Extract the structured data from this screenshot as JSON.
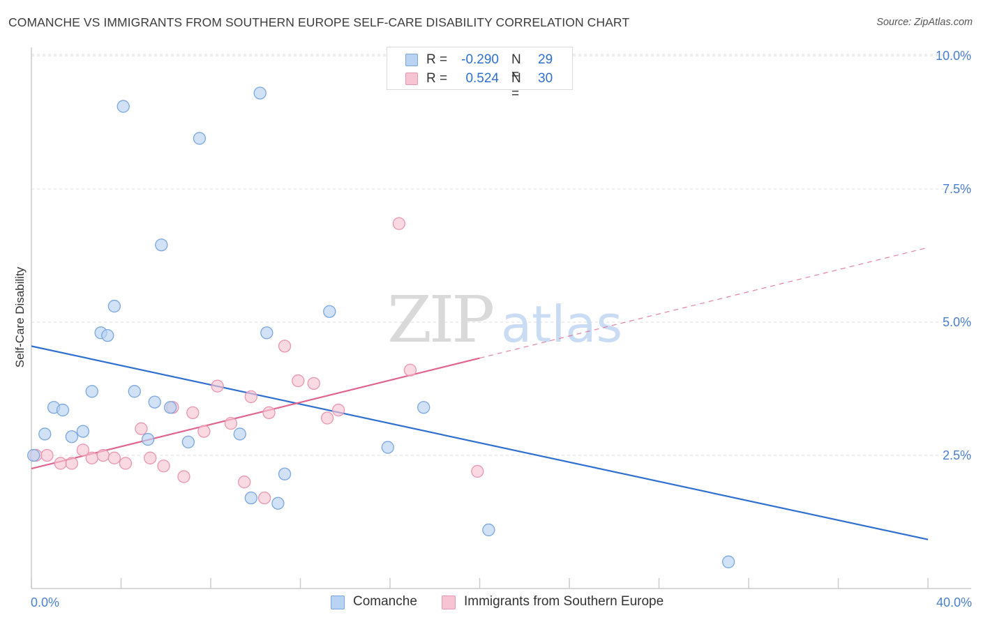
{
  "title": "COMANCHE VS IMMIGRANTS FROM SOUTHERN EUROPE SELF-CARE DISABILITY CORRELATION CHART",
  "source": "Source: ZipAtlas.com",
  "watermark": {
    "zip": "ZIP",
    "atlas": "atlas"
  },
  "legend": {
    "items": [
      {
        "r_label": "R =",
        "r_value": "-0.290",
        "n_label": "N =",
        "n_value": "29"
      },
      {
        "r_label": "R =",
        "r_value": "0.524",
        "n_label": "N =",
        "n_value": "30"
      }
    ]
  },
  "bottom_legend": {
    "series1": "Comanche",
    "series2": "Immigrants from Southern Europe"
  },
  "colors": {
    "blue_fill": "#b9d3f3",
    "blue_stroke": "#7aa6e0",
    "blue_line": "#2f6fd0",
    "pink_fill": "#f6c4d3",
    "pink_stroke": "#e896b1",
    "pink_line": "#e0648c",
    "grid": "#dddddd"
  },
  "chart_data": {
    "type": "scatter",
    "title": "COMANCHE VS IMMIGRANTS FROM SOUTHERN EUROPE SELF-CARE DISABILITY CORRELATION CHART",
    "xlabel": "",
    "ylabel": "Self-Care Disability",
    "xlim": [
      0,
      40
    ],
    "ylim": [
      0,
      10.5
    ],
    "x_tick_labels": [
      "0.0%",
      "40.0%"
    ],
    "y_ticks": [
      2.5,
      5.0,
      7.5,
      10.0
    ],
    "y_tick_labels": [
      "2.5%",
      "5.0%",
      "7.5%",
      "10.0%"
    ],
    "series": [
      {
        "name": "Comanche",
        "color": "blue",
        "R": -0.29,
        "N": 29,
        "trend": {
          "x": [
            0,
            40
          ],
          "y": [
            4.55,
            0.92
          ],
          "solid_until": 40
        },
        "points": [
          [
            0.1,
            2.5
          ],
          [
            0.6,
            2.9
          ],
          [
            1.0,
            3.4
          ],
          [
            1.4,
            3.35
          ],
          [
            1.8,
            2.85
          ],
          [
            2.3,
            2.95
          ],
          [
            2.7,
            3.7
          ],
          [
            3.1,
            4.8
          ],
          [
            3.4,
            4.75
          ],
          [
            3.7,
            5.3
          ],
          [
            4.1,
            9.05
          ],
          [
            4.6,
            3.7
          ],
          [
            5.2,
            2.8
          ],
          [
            5.5,
            3.5
          ],
          [
            5.8,
            6.45
          ],
          [
            6.2,
            3.4
          ],
          [
            7.0,
            2.75
          ],
          [
            7.5,
            8.45
          ],
          [
            9.3,
            2.9
          ],
          [
            9.8,
            1.7
          ],
          [
            10.2,
            9.3
          ],
          [
            10.5,
            4.8
          ],
          [
            11.0,
            1.6
          ],
          [
            11.3,
            2.15
          ],
          [
            13.3,
            5.2
          ],
          [
            15.9,
            2.65
          ],
          [
            17.5,
            3.4
          ],
          [
            20.4,
            1.1
          ],
          [
            31.1,
            0.5
          ]
        ]
      },
      {
        "name": "Immigrants from Southern Europe",
        "color": "pink",
        "R": 0.524,
        "N": 30,
        "trend": {
          "x": [
            0,
            40
          ],
          "y": [
            2.25,
            6.4
          ],
          "solid_until": 20
        },
        "points": [
          [
            0.2,
            2.5
          ],
          [
            0.7,
            2.5
          ],
          [
            1.3,
            2.35
          ],
          [
            1.8,
            2.35
          ],
          [
            2.3,
            2.6
          ],
          [
            2.7,
            2.45
          ],
          [
            3.2,
            2.5
          ],
          [
            3.7,
            2.45
          ],
          [
            4.2,
            2.35
          ],
          [
            4.9,
            3.0
          ],
          [
            5.3,
            2.45
          ],
          [
            5.9,
            2.3
          ],
          [
            6.3,
            3.4
          ],
          [
            6.8,
            2.1
          ],
          [
            7.2,
            3.3
          ],
          [
            7.7,
            2.95
          ],
          [
            8.3,
            3.8
          ],
          [
            8.9,
            3.1
          ],
          [
            9.5,
            2.0
          ],
          [
            9.8,
            3.6
          ],
          [
            10.4,
            1.7
          ],
          [
            10.6,
            3.3
          ],
          [
            11.3,
            4.55
          ],
          [
            11.9,
            3.9
          ],
          [
            12.6,
            3.85
          ],
          [
            13.2,
            3.2
          ],
          [
            13.7,
            3.35
          ],
          [
            16.4,
            6.85
          ],
          [
            16.9,
            4.1
          ],
          [
            19.9,
            2.2
          ]
        ]
      }
    ]
  }
}
